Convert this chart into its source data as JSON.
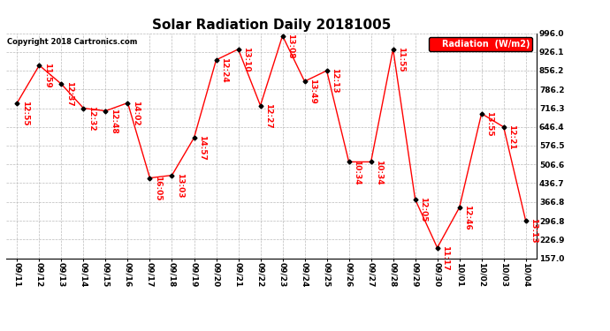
{
  "title": "Solar Radiation Daily 20181005",
  "copyright": "Copyright 2018 Cartronics.com",
  "legend_label": "Radiation  (W/m2)",
  "dates": [
    "09/11",
    "09/12",
    "09/13",
    "09/14",
    "09/15",
    "09/16",
    "09/17",
    "09/18",
    "09/19",
    "09/20",
    "09/21",
    "09/22",
    "09/23",
    "09/24",
    "09/25",
    "09/26",
    "09/27",
    "09/28",
    "09/29",
    "09/30",
    "10/01",
    "10/02",
    "10/03",
    "10/04"
  ],
  "values": [
    736,
    876,
    806,
    716,
    706,
    736,
    456,
    466,
    606,
    896,
    936,
    726,
    986,
    816,
    856,
    516,
    516,
    936,
    376,
    196,
    346,
    696,
    646,
    296
  ],
  "labels": [
    "12:55",
    "11:59",
    "12:37",
    "12:32",
    "12:48",
    "14:02",
    "16:05",
    "13:03",
    "14:57",
    "12:24",
    "13:10",
    "12:27",
    "13:08",
    "13:49",
    "12:13",
    "10:34",
    "10:34",
    "11:55",
    "12:05",
    "11:17",
    "12:46",
    "13:55",
    "12:21",
    "13:13"
  ],
  "ylim_min": 157.0,
  "ylim_max": 996.0,
  "yticks": [
    157.0,
    226.9,
    296.8,
    366.8,
    436.7,
    506.6,
    576.5,
    646.4,
    716.3,
    786.2,
    856.2,
    926.1,
    996.0
  ],
  "line_color": "red",
  "marker_color": "black",
  "bg_color": "white",
  "grid_color": "#bbbbbb",
  "title_fontsize": 11,
  "tick_fontsize": 6.5,
  "annot_fontsize": 6.5,
  "copyright_fontsize": 6,
  "legend_fontsize": 7
}
